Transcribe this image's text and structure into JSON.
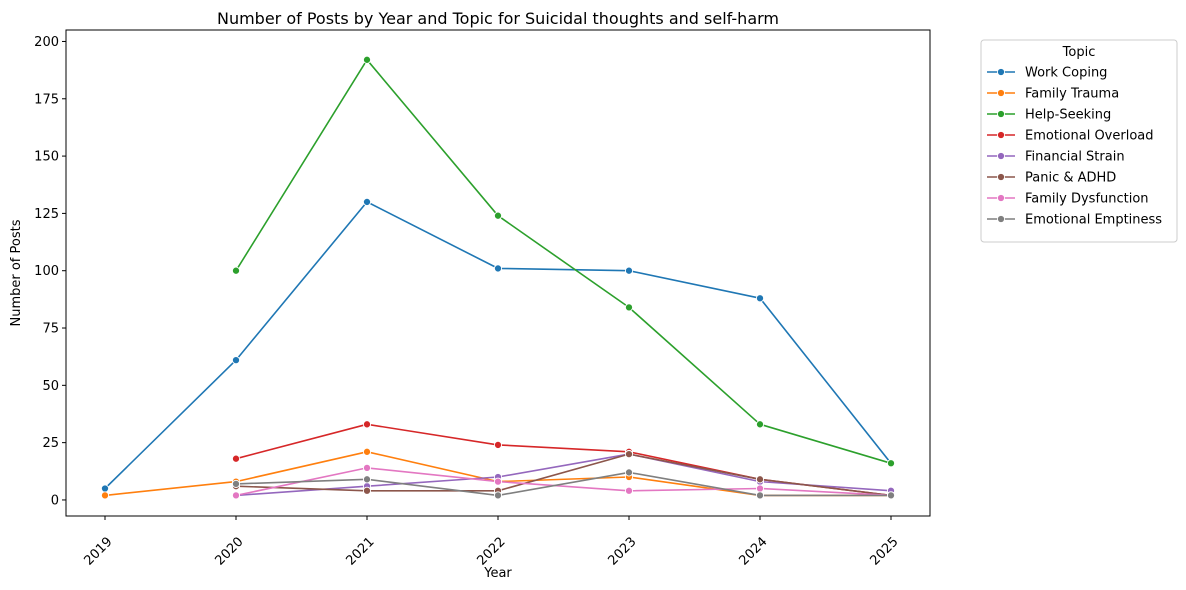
{
  "chart_data": {
    "type": "line",
    "title": "Number of Posts by Year and Topic for Suicidal thoughts and self-harm",
    "xlabel": "Year",
    "ylabel": "Number of Posts",
    "x": [
      "2019",
      "2020",
      "2021",
      "2022",
      "2023",
      "2024",
      "2025"
    ],
    "xlim": [
      2019,
      2025
    ],
    "ylim": [
      -7,
      205
    ],
    "yticks": [
      0,
      25,
      50,
      75,
      100,
      125,
      150,
      175,
      200
    ],
    "grid": false,
    "legend": {
      "title": "Topic",
      "placement": "outside top-right"
    },
    "series": [
      {
        "name": "Work Coping",
        "color": "#1f77b4",
        "values": [
          5,
          61,
          130,
          101,
          100,
          88,
          16
        ]
      },
      {
        "name": "Family Trauma",
        "color": "#ff7f0e",
        "values": [
          2,
          8,
          21,
          8,
          10,
          2,
          2
        ]
      },
      {
        "name": "Help-Seeking",
        "color": "#2ca02c",
        "values": [
          null,
          100,
          192,
          124,
          84,
          33,
          16
        ]
      },
      {
        "name": "Emotional Overload",
        "color": "#d62728",
        "values": [
          null,
          18,
          33,
          24,
          21,
          9,
          2
        ]
      },
      {
        "name": "Financial Strain",
        "color": "#9467bd",
        "values": [
          null,
          2,
          6,
          10,
          20,
          8,
          4
        ]
      },
      {
        "name": "Panic & ADHD",
        "color": "#8c564b",
        "values": [
          null,
          6,
          4,
          4,
          20,
          9,
          2
        ]
      },
      {
        "name": "Family Dysfunction",
        "color": "#e377c2",
        "values": [
          null,
          2,
          14,
          8,
          4,
          5,
          2
        ]
      },
      {
        "name": "Emotional Emptiness",
        "color": "#7f7f7f",
        "values": [
          null,
          7,
          9,
          2,
          12,
          2,
          2
        ]
      }
    ]
  }
}
